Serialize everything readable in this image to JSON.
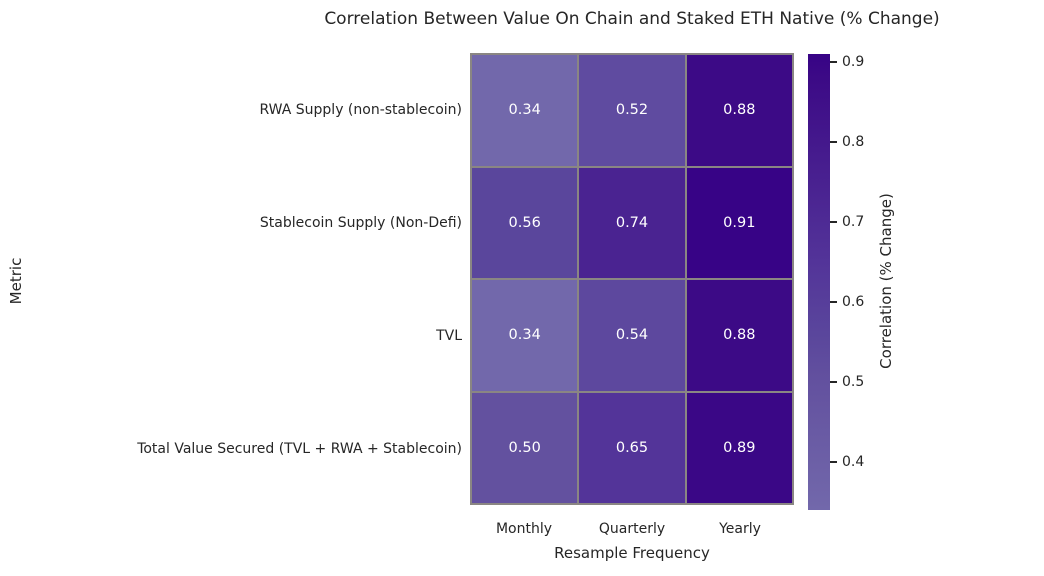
{
  "chart_data": {
    "type": "heatmap",
    "title": "Correlation Between Value On Chain and Staked ETH Native (% Change)",
    "xlabel": "Resample Frequency",
    "ylabel": "Metric",
    "x_categories": [
      "Monthly",
      "Quarterly",
      "Yearly"
    ],
    "y_categories": [
      "RWA Supply (non-stablecoin)",
      "Stablecoin Supply (Non-Defi)",
      "TVL",
      "Total Value Secured (TVL + RWA + Stablecoin)"
    ],
    "values": [
      [
        0.34,
        0.52,
        0.88
      ],
      [
        0.56,
        0.74,
        0.91
      ],
      [
        0.34,
        0.54,
        0.88
      ],
      [
        0.5,
        0.65,
        0.89
      ]
    ],
    "cell_colors": [
      [
        "#7268ab",
        "#5f4ba0",
        "#3c0a86"
      ],
      [
        "#5a469c",
        "#4a2391",
        "#370386"
      ],
      [
        "#7268ab",
        "#5d489e",
        "#3c0a86"
      ],
      [
        "#63519f",
        "#533499",
        "#3a0786"
      ]
    ],
    "cell_text_color": "#ffffff",
    "grid_line_color": "#8a8683",
    "text_color": "#262626",
    "legend_position": "right",
    "grid": false,
    "colorbar": {
      "label": "Correlation (% Change)",
      "vmin": 0.34,
      "vmax": 0.91,
      "ticks": [
        0.9,
        0.8,
        0.7,
        0.6,
        0.5,
        0.4
      ],
      "gradient_stops": [
        {
          "value": 0.34,
          "color": "#7268ab"
        },
        {
          "value": 0.5,
          "color": "#63519f"
        },
        {
          "value": 0.56,
          "color": "#5a469c"
        },
        {
          "value": 0.65,
          "color": "#533499"
        },
        {
          "value": 0.74,
          "color": "#4a2391"
        },
        {
          "value": 0.88,
          "color": "#3c0a86"
        },
        {
          "value": 0.91,
          "color": "#370386"
        }
      ]
    }
  }
}
